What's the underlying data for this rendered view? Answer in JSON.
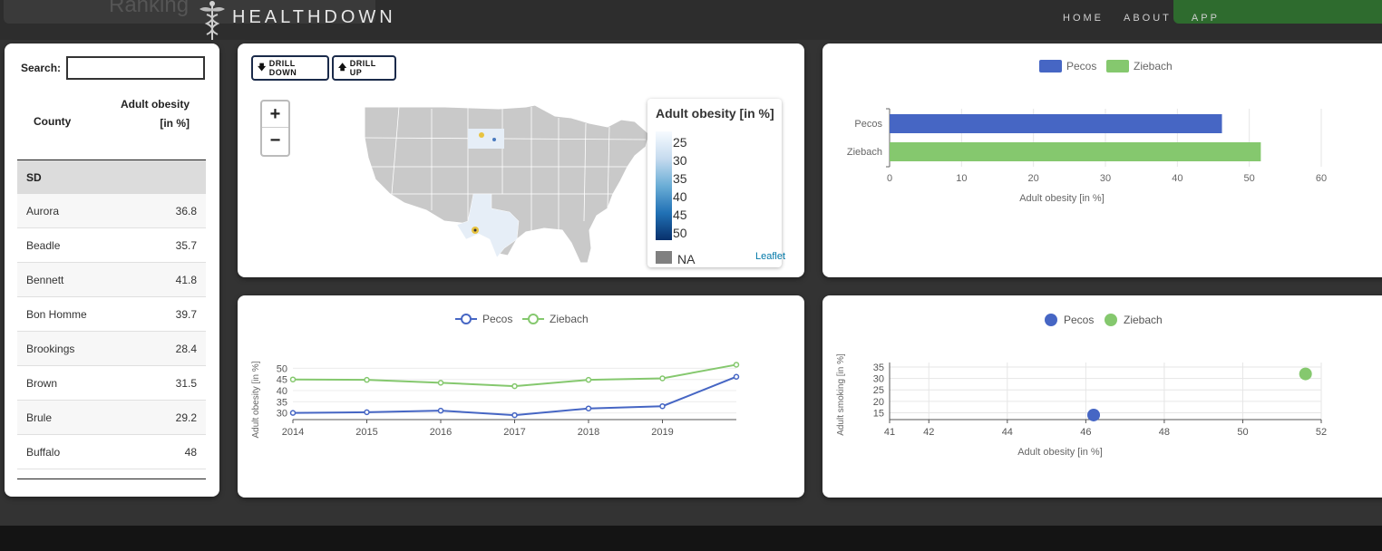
{
  "navbar": {
    "ghost_title": "Ranking",
    "brand": "HEALTHDOWN",
    "links": [
      "HOME",
      "ABOUT",
      "APP"
    ]
  },
  "table": {
    "search_label": "Search:",
    "search_value": "",
    "col_county": "County",
    "col_value": "Adult obesity [in %]",
    "group": "SD",
    "rows": [
      {
        "county": "Aurora",
        "value": "36.8"
      },
      {
        "county": "Beadle",
        "value": "35.7"
      },
      {
        "county": "Bennett",
        "value": "41.8"
      },
      {
        "county": "Bon Homme",
        "value": "39.7"
      },
      {
        "county": "Brookings",
        "value": "28.4"
      },
      {
        "county": "Brown",
        "value": "31.5"
      },
      {
        "county": "Brule",
        "value": "29.2"
      },
      {
        "county": "Buffalo",
        "value": "48"
      }
    ]
  },
  "map": {
    "drill_down": "DRILL DOWN",
    "drill_up": "DRILL UP",
    "zoom_in": "+",
    "zoom_out": "−",
    "legend_title": "Adult obesity [in %]",
    "legend_ticks": [
      "25",
      "30",
      "35",
      "40",
      "45",
      "50"
    ],
    "legend_na": "NA",
    "attribution": "Leaflet"
  },
  "colors": {
    "pecos": "#4666c4",
    "ziebach": "#85c86e",
    "map_land": "#c9c9c9",
    "map_border": "#ffffff"
  },
  "chart_data": [
    {
      "type": "bar",
      "orientation": "horizontal",
      "categories": [
        "Pecos",
        "Ziebach"
      ],
      "values": [
        46.2,
        51.6
      ],
      "legend": [
        "Pecos",
        "Ziebach"
      ],
      "xlabel": "Adult obesity [in %]",
      "xlim": [
        0,
        60
      ],
      "xticks": [
        "0",
        "10",
        "20",
        "30",
        "40",
        "50",
        "60"
      ]
    },
    {
      "type": "line",
      "x": [
        2014,
        2015,
        2016,
        2017,
        2018,
        2019,
        2020
      ],
      "xticks": [
        "2014",
        "2015",
        "2016",
        "2017",
        "2018",
        "2019"
      ],
      "series": [
        {
          "name": "Pecos",
          "values": [
            30.0,
            30.3,
            31.0,
            29.0,
            32.0,
            33.0,
            46.2
          ]
        },
        {
          "name": "Ziebach",
          "values": [
            45.0,
            44.8,
            43.5,
            42.0,
            44.8,
            45.5,
            51.6
          ]
        }
      ],
      "ylabel": "Adult obesity [in %]",
      "ylim": [
        27,
        53
      ],
      "yticks": [
        "30",
        "35",
        "40",
        "45",
        "50"
      ]
    },
    {
      "type": "scatter",
      "series": [
        {
          "name": "Pecos",
          "x": 46.2,
          "y": 14
        },
        {
          "name": "Ziebach",
          "x": 51.6,
          "y": 32
        }
      ],
      "xlabel": "Adult obesity [in %]",
      "ylabel": "Adult smoking [in %]",
      "xlim": [
        41,
        52
      ],
      "ylim": [
        12,
        37
      ],
      "xticks": [
        "41",
        "42",
        "44",
        "46",
        "48",
        "50",
        "52"
      ],
      "yticks": [
        "15",
        "20",
        "25",
        "30",
        "35"
      ]
    }
  ]
}
